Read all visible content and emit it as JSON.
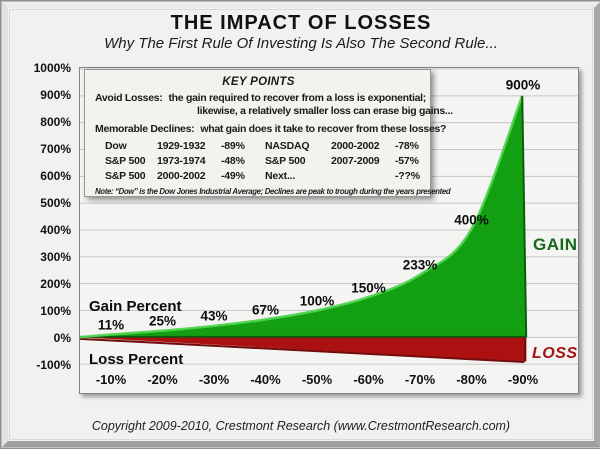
{
  "header": {
    "title": "THE IMPACT OF LOSSES",
    "subtitle": "Why The First Rule Of Investing Is Also The Second Rule..."
  },
  "key_points": {
    "title": "KEY POINTS",
    "avoid_label": "Avoid Losses:",
    "avoid_line1": "the gain required to recover from a loss is exponential;",
    "avoid_line2": "likewise, a relatively smaller loss can erase big gains...",
    "memorable_label": "Memorable Declines:",
    "memorable_text": "what gain does it take to recover from these losses?",
    "declines": [
      [
        "Dow",
        "1929-1932",
        "-89%",
        "NASDAQ",
        "2000-2002",
        "-78%"
      ],
      [
        "S&P 500",
        "1973-1974",
        "-48%",
        "S&P 500",
        "2007-2009",
        "-57%"
      ],
      [
        "S&P 500",
        "2000-2002",
        "-49%",
        "Next...",
        "",
        "-??%"
      ]
    ],
    "note": "Note: “Dow” is the Dow Jones Industrial Average; Declines are peak to trough during the years presented"
  },
  "chart_data": {
    "type": "area",
    "title": "THE IMPACT OF LOSSES",
    "categories": [
      "-10%",
      "-20%",
      "-30%",
      "-40%",
      "-50%",
      "-60%",
      "-70%",
      "-80%",
      "-90%"
    ],
    "series": [
      {
        "name": "Gain Percent",
        "values": [
          11,
          25,
          43,
          67,
          100,
          150,
          233,
          400,
          900
        ],
        "labels": [
          "11%",
          "25%",
          "43%",
          "67%",
          "100%",
          "150%",
          "233%",
          "400%",
          "900%"
        ],
        "color": "#12a012"
      },
      {
        "name": "Loss Percent",
        "values": [
          -10,
          -20,
          -30,
          -40,
          -50,
          -60,
          -70,
          -80,
          -90
        ],
        "color": "#ac1111"
      }
    ],
    "ylim": [
      -100,
      1000
    ],
    "y_ticks": [
      1000,
      900,
      800,
      700,
      600,
      500,
      400,
      300,
      200,
      100,
      0,
      -100
    ],
    "y_tick_labels": [
      "1000%",
      "900%",
      "800%",
      "700%",
      "600%",
      "500%",
      "400%",
      "300%",
      "200%",
      "100%",
      "0%",
      "-100%"
    ],
    "grid": "horizontal",
    "annotations": {
      "gain": "GAIN",
      "loss": "LOSS",
      "gain_series": "Gain Percent",
      "loss_series": "Loss Percent"
    },
    "colors": {
      "green_fill": "#12a012",
      "green_highlight": "#4fd44f",
      "green_dark_edge": "#0b430b",
      "red_fill": "#ac1111",
      "red_dark_edge": "#700c0c",
      "gain_text": "#17671d",
      "loss_text": "#a11214",
      "gridline": "#c7c7c5"
    }
  },
  "footer": {
    "copyright": "Copyright 2009-2010, Crestmont Research (www.CrestmontResearch.com)"
  }
}
